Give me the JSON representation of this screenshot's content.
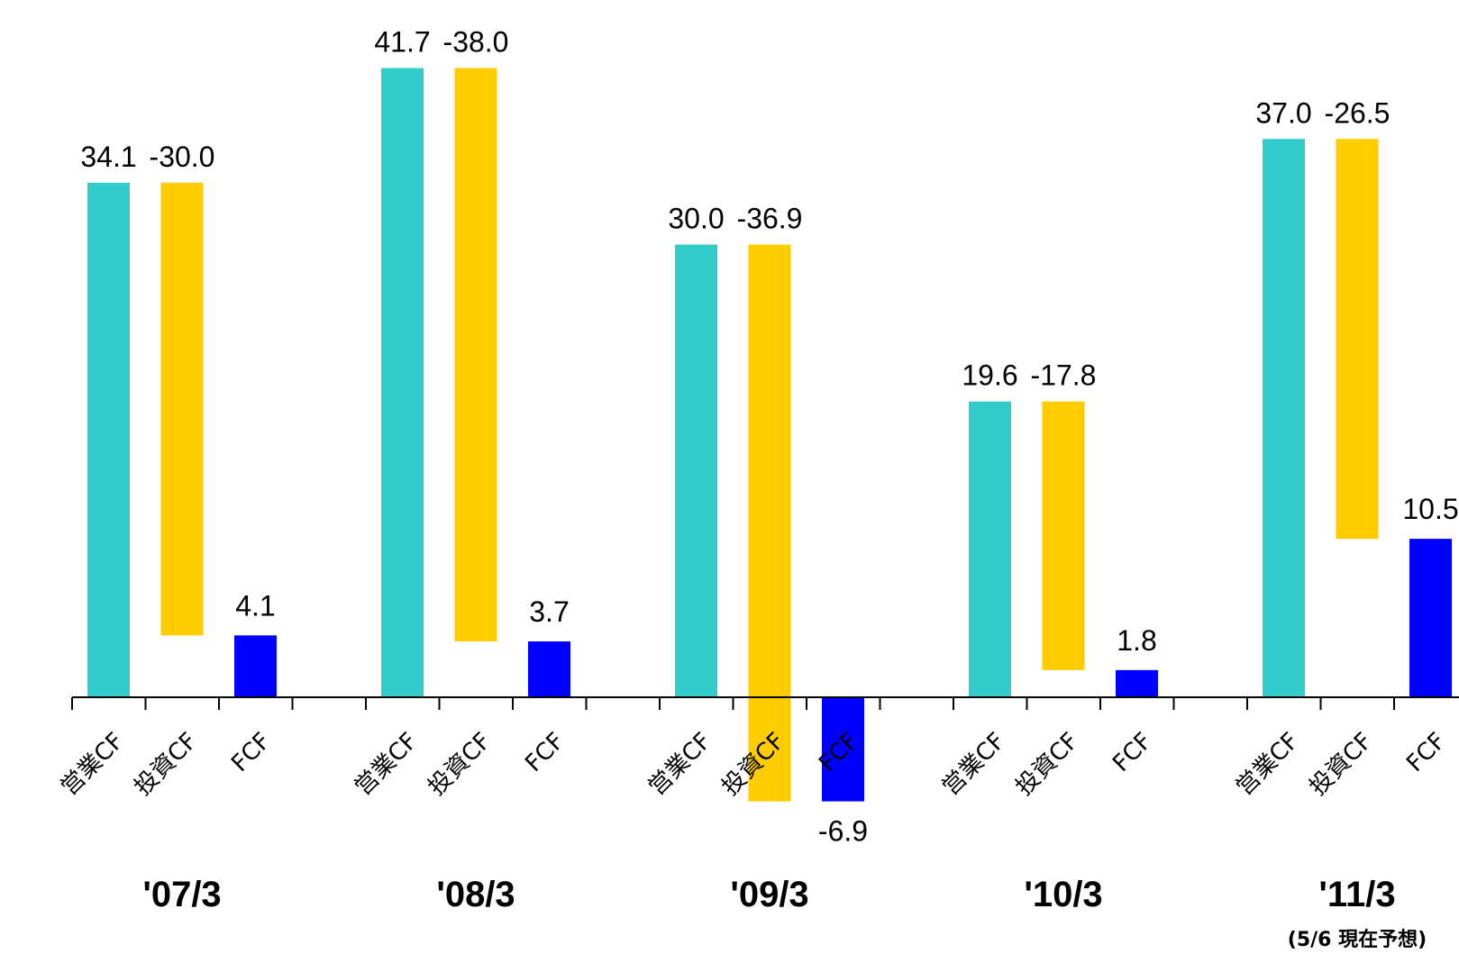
{
  "chart_data": {
    "type": "bar",
    "subtype": "waterfall",
    "colors": {
      "operating_cf": "#33CCCC",
      "investing_cf": "#FFCC00",
      "fcf": "#0000FF",
      "axis": "#000000"
    },
    "bar_categories": [
      "営業CF",
      "投資CF",
      "FCF"
    ],
    "groups": [
      {
        "period": "'07/3",
        "operating_cf": 34.1,
        "investing_cf": -30.0,
        "fcf": 4.1,
        "note": ""
      },
      {
        "period": "'08/3",
        "operating_cf": 41.7,
        "investing_cf": -38.0,
        "fcf": 3.7,
        "note": ""
      },
      {
        "period": "'09/3",
        "operating_cf": 30.0,
        "investing_cf": -36.9,
        "fcf": -6.9,
        "note": ""
      },
      {
        "period": "'10/3",
        "operating_cf": 19.6,
        "investing_cf": -17.8,
        "fcf": 1.8,
        "note": ""
      },
      {
        "period": "'11/3",
        "operating_cf": 37.0,
        "investing_cf": -26.5,
        "fcf": 10.5,
        "note": "(5/6 現在予想)"
      }
    ],
    "ylim": [
      -8,
      42
    ],
    "grid": false,
    "legend": "none"
  }
}
